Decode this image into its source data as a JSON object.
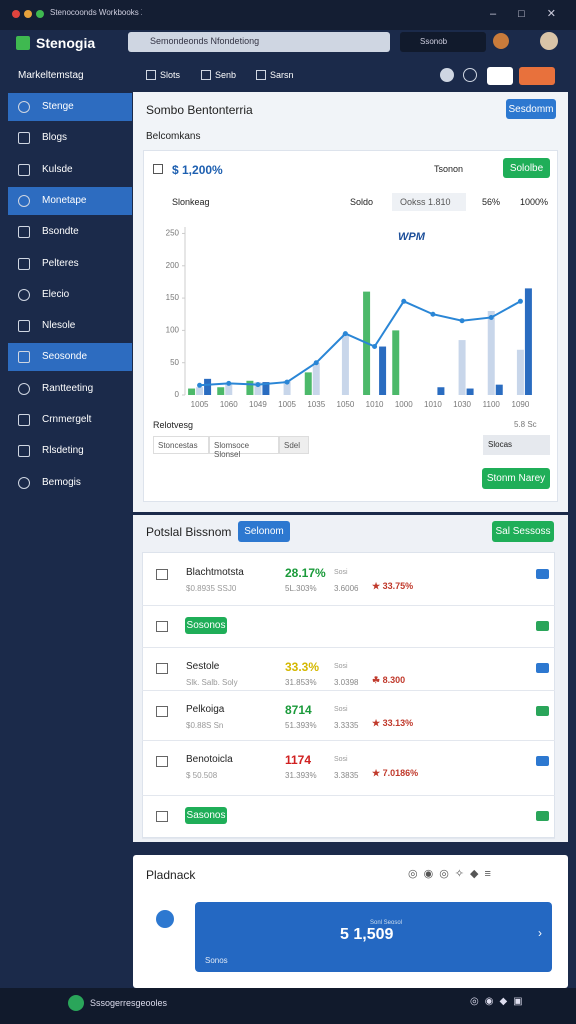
{
  "window": {
    "tab": "Stenocoonds Workbooks X"
  },
  "topbar": {
    "logo": "Stenogia",
    "search": "Semondeonds Nfondetiong",
    "account": "Ssonob"
  },
  "sidebar": {
    "workspace": "Markeltemstag",
    "items": [
      {
        "label": "Stenge",
        "active": true
      },
      {
        "label": "Blogs",
        "active": false
      },
      {
        "label": "Kulsde",
        "active": false
      },
      {
        "label": "Monetape",
        "active": true
      },
      {
        "label": "Bsondte",
        "active": false
      },
      {
        "label": "Pelteres",
        "active": false
      },
      {
        "label": "Elecio",
        "active": false
      },
      {
        "label": "Nlesole",
        "active": false
      },
      {
        "label": "Seosonde",
        "active": true
      },
      {
        "label": "Rantteeting",
        "active": false
      },
      {
        "label": "Crnmergelt",
        "active": false
      },
      {
        "label": "Rlsdeting",
        "active": false
      },
      {
        "label": "Bemogis",
        "active": false
      }
    ]
  },
  "toolbar": {
    "items": [
      "Slots",
      "Senb",
      "Sarsn"
    ]
  },
  "overview": {
    "title": "Sombo Bentonterria",
    "button": "Sesdomm",
    "subtitle": "Belcomkans",
    "metric": "$ 1,200%",
    "filter": "Tsonon",
    "action": "Sololbe",
    "chart_title": "Slonkeag",
    "toggle": "Soldo",
    "range": "Ookss 1.810",
    "zoom": "56%",
    "zoom_max": "1000%",
    "footer_label": "Relotvesg",
    "input1": "Stoncestas",
    "input2": "Slomsoce Slonsel",
    "input3": "Sdel",
    "range_right": "5.8 Sc",
    "select": "Slocas",
    "submit": "Stonm Narey"
  },
  "chart": {
    "type": "bar",
    "annotation": "WPM",
    "categories": [
      "1005",
      "1060",
      "1049",
      "1005",
      "1035",
      "1050",
      "1010",
      "1000",
      "1010",
      "1030",
      "1100",
      "1090"
    ],
    "ylim": [
      0,
      260
    ],
    "yticks": [
      0,
      50,
      100,
      150,
      200,
      250
    ],
    "grid": false,
    "series": [
      {
        "name": "green",
        "color": "#4cb96a",
        "values": [
          10,
          12,
          22,
          null,
          35,
          null,
          160,
          100,
          null,
          null,
          null,
          null
        ]
      },
      {
        "name": "light",
        "color": "#c8d6ea",
        "values": [
          12,
          18,
          20,
          22,
          50,
          95,
          null,
          null,
          null,
          85,
          130,
          70
        ]
      },
      {
        "name": "blue",
        "color": "#2a6cc0",
        "values": [
          25,
          null,
          20,
          null,
          null,
          null,
          75,
          null,
          12,
          10,
          16,
          165
        ]
      },
      {
        "name": "line",
        "color": "#2a86d6",
        "values": [
          15,
          18,
          16,
          20,
          50,
          95,
          75,
          145,
          125,
          115,
          120,
          145
        ]
      }
    ]
  },
  "portfolio": {
    "title": "Potslal Bissnom",
    "tab": "Selonom",
    "action": "Sal Sessoss",
    "rows": [
      {
        "name": "Blachtmotsta",
        "sub": "$0.8935 SSJ0",
        "pct": "28.17%",
        "pct_color": "#1a9a3a",
        "pct_sub": "5L.303%",
        "col": "Sosi",
        "col_sub": "3.6006",
        "stat": "★ 33.75%"
      },
      {
        "badge": "Sosonos"
      },
      {
        "name": "Sestole",
        "sub": "Slk. Salb. Soly",
        "pct": "33.3%",
        "pct_color": "#d4b800",
        "pct_sub": "31.853%",
        "col": "Sosi",
        "col_sub": "3.0398",
        "stat": "☘ 8.300"
      },
      {
        "name": "Pelkoiga",
        "sub": "$0.88S Sn",
        "pct": "8714",
        "pct_color": "#1a9a3a",
        "pct_sub": "51.393%",
        "col": "Sosi",
        "col_sub": "3.3335",
        "stat": "★ 33.13%"
      },
      {
        "name": "Benotoicla",
        "sub": "$ 50.508",
        "pct": "1174",
        "pct_color": "#d02020",
        "pct_sub": "31.393%",
        "col": "Sosi",
        "col_sub": "3.3835",
        "stat": "★ 7.0186%"
      },
      {
        "badge": "Sasonos"
      }
    ]
  },
  "feedback": {
    "title": "Pladnack",
    "value": "5 1,509",
    "caption": "Sonos",
    "note": "Sonl Seosol"
  },
  "taskbar": {
    "status": "Sssogerresgeooles"
  }
}
